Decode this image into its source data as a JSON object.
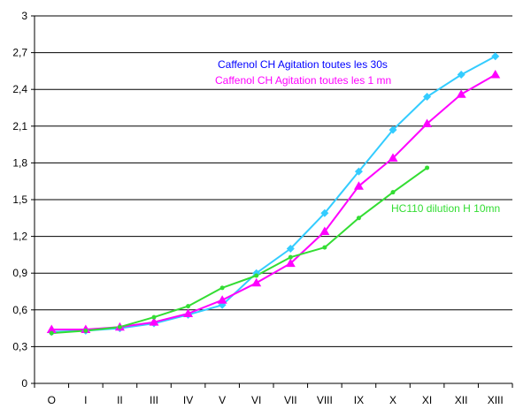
{
  "chart_data": {
    "type": "line",
    "categories": [
      "O",
      "I",
      "II",
      "III",
      "IV",
      "V",
      "VI",
      "VII",
      "VIII",
      "IX",
      "X",
      "XI",
      "XII",
      "XIII"
    ],
    "yticks": [
      "0",
      "0,3",
      "0,6",
      "0,9",
      "1,2",
      "1,5",
      "1,8",
      "2,1",
      "2,4",
      "2,7",
      "3"
    ],
    "ylim": [
      0,
      3
    ],
    "grid": "horizontal",
    "series": [
      {
        "name": "Caffenol CH  Agitation toutes les 30s",
        "marker": "diamond",
        "line_color": "#33CCFF",
        "marker_color": "#33CCFF",
        "label_color": "#0000FF",
        "values": [
          0.42,
          0.43,
          0.45,
          0.49,
          0.56,
          0.64,
          0.9,
          1.1,
          1.39,
          1.73,
          2.07,
          2.34,
          2.52,
          2.67
        ]
      },
      {
        "name": "Caffenol CH Agitation toutes les 1 mn",
        "marker": "triangle",
        "line_color": "#FF00FF",
        "marker_color": "#FF00FF",
        "label_color": "#FF00FF",
        "values": [
          0.44,
          0.44,
          0.46,
          0.5,
          0.57,
          0.68,
          0.82,
          0.98,
          1.24,
          1.61,
          1.84,
          2.12,
          2.36,
          2.52
        ]
      },
      {
        "name": "HC110 dilution H 10mn",
        "marker": "dot",
        "line_color": "#33DD33",
        "marker_color": "#33DD33",
        "label_color": "#33DD33",
        "values": [
          0.41,
          0.43,
          0.46,
          0.54,
          0.63,
          0.78,
          0.88,
          1.03,
          1.11,
          1.35,
          1.56,
          1.76,
          null,
          null
        ]
      }
    ]
  }
}
